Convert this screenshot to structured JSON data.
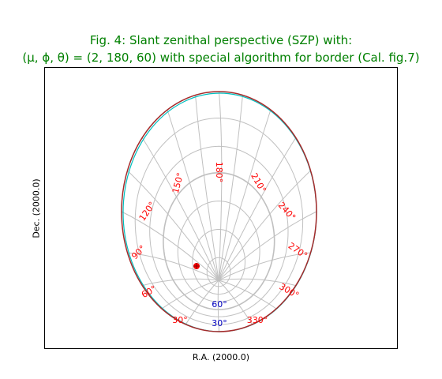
{
  "chart_data": {
    "type": "sky-projection",
    "title_line1": "Fig. 4: Slant zenithal perspective (SZP) with:",
    "title_line2": "(μ, ϕ, θ) = (2, 180, 60) with special algorithm for border (Cal. fig.7)",
    "xlabel": "R.A. (2000.0)",
    "ylabel": "Dec. (2000.0)",
    "projection": "SZP",
    "parameters": {
      "mu": 2,
      "phi": 180,
      "theta": 60
    },
    "ra_tick_labels": [
      "180°",
      "210°",
      "240°",
      "270°",
      "300°",
      "330°",
      "30°",
      "60°",
      "90°",
      "120°",
      "150°"
    ],
    "dec_tick_labels": [
      "60°",
      "30°"
    ],
    "marker_label": "",
    "colors": {
      "title": "#008000",
      "border": "#a52a2a",
      "border_alt": "#00bfbf",
      "grid": "#c0c0c0",
      "ra_labels": "#ff0000",
      "dec_labels": "#0000bf",
      "marker": "#ff0000"
    }
  }
}
